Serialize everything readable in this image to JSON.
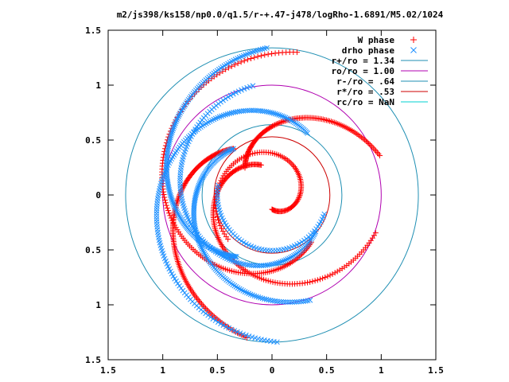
{
  "chart_data": {
    "type": "scatter",
    "title": "m2/js398/ks158/np0.0/q1.5/r-+.47-j478/logRho-1.6891/M5.02/1024",
    "xlabel": "",
    "ylabel": "",
    "xlim": [
      -1.5,
      1.5
    ],
    "ylim": [
      -1.5,
      1.5
    ],
    "grid": false,
    "legend_position": "top-right",
    "x_ticks": [
      {
        "value": -1.5,
        "label": "1.5"
      },
      {
        "value": -1.0,
        "label": "1"
      },
      {
        "value": -0.5,
        "label": "0.5"
      },
      {
        "value": 0.0,
        "label": "0"
      },
      {
        "value": 0.5,
        "label": "0.5"
      },
      {
        "value": 1.0,
        "label": "1"
      },
      {
        "value": 1.5,
        "label": "1.5"
      }
    ],
    "y_ticks": [
      {
        "value": 1.5,
        "label": "1.5"
      },
      {
        "value": 1.0,
        "label": "1"
      },
      {
        "value": 0.5,
        "label": "0.5"
      },
      {
        "value": 0.0,
        "label": "0"
      },
      {
        "value": -0.5,
        "label": "0.5"
      },
      {
        "value": -1.0,
        "label": "1"
      },
      {
        "value": -1.5,
        "label": "1.5"
      }
    ],
    "series": [
      {
        "name": "W phase",
        "kind": "points",
        "marker": "plus",
        "color": "#ff0000",
        "arms": [
          {
            "r0": 0.13,
            "r1": 0.57,
            "t0": -90,
            "t1": 225,
            "n": 110
          },
          {
            "r0": 0.29,
            "r1": 1.01,
            "t0": 110,
            "t1": 340,
            "n": 150
          },
          {
            "r0": 0.35,
            "r1": 1.05,
            "t0": 135,
            "t1": 20,
            "n": 120
          },
          {
            "r0": 0.56,
            "r1": 1.32,
            "t0": 310,
            "t1": 80,
            "n": 160
          },
          {
            "r0": 0.55,
            "r1": 1.32,
            "t0": 130,
            "t1": 260,
            "n": 160
          }
        ]
      },
      {
        "name": "drho phase",
        "kind": "points",
        "marker": "cross",
        "color": "#1e90ff",
        "arms": [
          {
            "r0": 0.5,
            "r1": 0.51,
            "t0": 170,
            "t1": 340,
            "n": 60
          },
          {
            "r0": 0.55,
            "r1": 1.02,
            "t0": 130,
            "t1": 290,
            "n": 140
          },
          {
            "r0": 0.52,
            "r1": 1.01,
            "t0": 320,
            "t1": 100,
            "n": 140
          },
          {
            "r0": 0.65,
            "r1": 1.34,
            "t0": 240,
            "t1": 92,
            "n": 170
          },
          {
            "r0": 0.65,
            "r1": 1.34,
            "t0": 60,
            "t1": 272,
            "n": 170
          }
        ]
      },
      {
        "name": "r+/ro = 1.34",
        "kind": "circle",
        "radius": 1.34,
        "color": "#1f8fb3"
      },
      {
        "name": "ro/ro = 1.00",
        "kind": "circle",
        "radius": 1.0,
        "color": "#b000b0"
      },
      {
        "name": "r-/ro = .64",
        "kind": "circle",
        "radius": 0.64,
        "color": "#1f8fb3"
      },
      {
        "name": "r*/ro = .53",
        "kind": "circle",
        "radius": 0.53,
        "color": "#cc0000"
      },
      {
        "name": "rc/ro = NaN",
        "kind": "circle",
        "radius": null,
        "color": "#00d0d0"
      }
    ]
  }
}
